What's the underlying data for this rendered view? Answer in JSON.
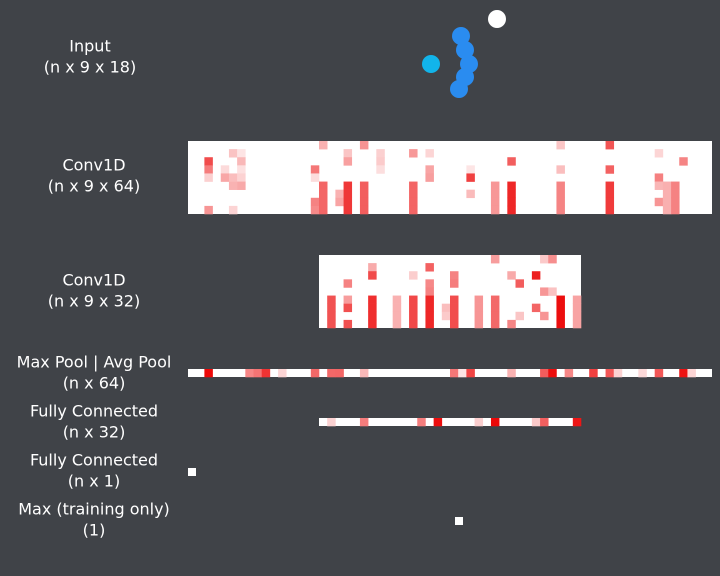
{
  "layers": [
    {
      "name": "Input",
      "shape": "(n x 9 x 18)"
    },
    {
      "name": "Conv1D",
      "shape": "(n x 9 x 64)"
    },
    {
      "name": "Conv1D",
      "shape": "(n x 9 x 32)"
    },
    {
      "name": "Max Pool | Avg Pool",
      "shape": "(n x 64)"
    },
    {
      "name": "Fully Connected",
      "shape": "(n x 32)"
    },
    {
      "name": "Fully Connected",
      "shape": "(n x 1)"
    },
    {
      "name": "Max (training only)",
      "shape": "(1)"
    }
  ]
}
